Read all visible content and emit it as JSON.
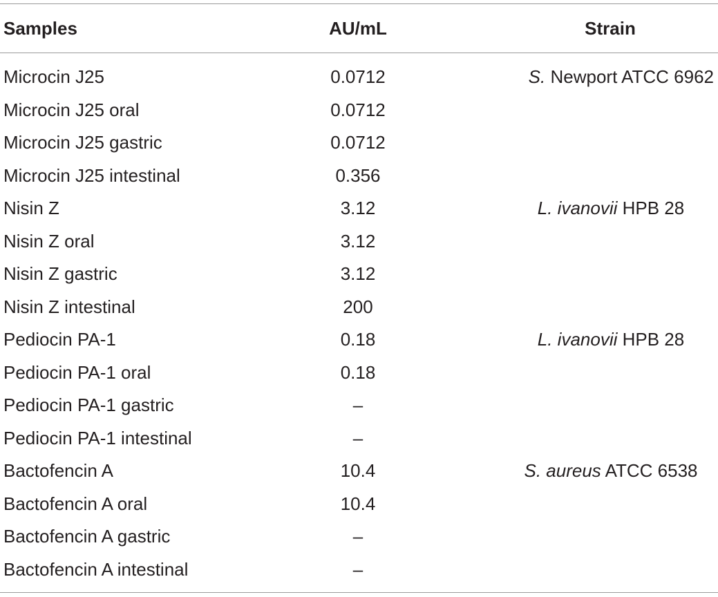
{
  "table": {
    "headers": {
      "samples": "Samples",
      "au": "AU/mL",
      "strain": "Strain"
    },
    "rows": [
      {
        "sample": "Microcin J25",
        "au": "0.0712",
        "strain_italic": "S.",
        "strain_rest": " Newport ATCC 6962"
      },
      {
        "sample": "Microcin J25 oral",
        "au": "0.0712",
        "strain_italic": "",
        "strain_rest": ""
      },
      {
        "sample": "Microcin J25 gastric",
        "au": "0.0712",
        "strain_italic": "",
        "strain_rest": ""
      },
      {
        "sample": "Microcin J25 intestinal",
        "au": "0.356",
        "strain_italic": "",
        "strain_rest": ""
      },
      {
        "sample": "Nisin Z",
        "au": "3.12",
        "strain_italic": "L. ivanovii",
        "strain_rest": " HPB 28"
      },
      {
        "sample": "Nisin Z oral",
        "au": "3.12",
        "strain_italic": "",
        "strain_rest": ""
      },
      {
        "sample": "Nisin Z gastric",
        "au": "3.12",
        "strain_italic": "",
        "strain_rest": ""
      },
      {
        "sample": "Nisin Z intestinal",
        "au": "200",
        "strain_italic": "",
        "strain_rest": ""
      },
      {
        "sample": "Pediocin PA-1",
        "au": "0.18",
        "strain_italic": "L. ivanovii",
        "strain_rest": " HPB 28"
      },
      {
        "sample": "Pediocin PA-1 oral",
        "au": "0.18",
        "strain_italic": "",
        "strain_rest": ""
      },
      {
        "sample": "Pediocin PA-1 gastric",
        "au": "–",
        "strain_italic": "",
        "strain_rest": ""
      },
      {
        "sample": "Pediocin PA-1 intestinal",
        "au": "–",
        "strain_italic": "",
        "strain_rest": ""
      },
      {
        "sample": "Bactofencin A",
        "au": "10.4",
        "strain_italic": "S. aureus",
        "strain_rest": " ATCC 6538"
      },
      {
        "sample": "Bactofencin A oral",
        "au": "10.4",
        "strain_italic": "",
        "strain_rest": ""
      },
      {
        "sample": "Bactofencin A gastric",
        "au": "–",
        "strain_italic": "",
        "strain_rest": ""
      },
      {
        "sample": "Bactofencin A intestinal",
        "au": "–",
        "strain_italic": "",
        "strain_rest": ""
      }
    ]
  }
}
